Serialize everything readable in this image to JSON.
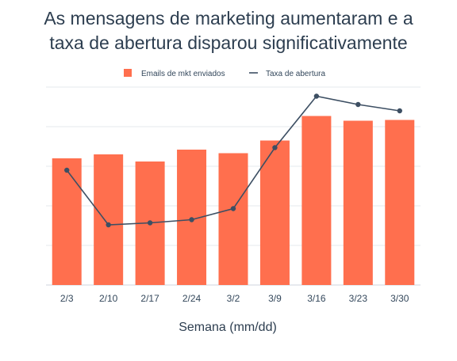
{
  "chart_data": {
    "type": "bar",
    "title_lines": [
      "As mensagens de marketing aumentaram e a",
      "taxa de abertura disparou significativamente"
    ],
    "xlabel": "Semana (mm/dd)",
    "ylabel": "",
    "categories": [
      "2/3",
      "2/10",
      "2/17",
      "2/24",
      "3/2",
      "3/9",
      "3/16",
      "3/23",
      "3/30"
    ],
    "series": [
      {
        "name": "Emails de mkt enviados",
        "kind": "bar",
        "color": "#ff6f4e",
        "values": [
          3.2,
          3.3,
          3.12,
          3.42,
          3.33,
          3.65,
          4.27,
          4.15,
          4.17
        ]
      },
      {
        "name": "Taxa de abertura",
        "kind": "line",
        "color": "#3d4f63",
        "values": [
          2.9,
          1.52,
          1.57,
          1.65,
          1.93,
          3.47,
          4.77,
          4.56,
          4.4
        ]
      }
    ],
    "ylim": [
      0,
      5
    ],
    "y_ticks_labeled": false,
    "grid": true,
    "legend_position": "top-center"
  }
}
